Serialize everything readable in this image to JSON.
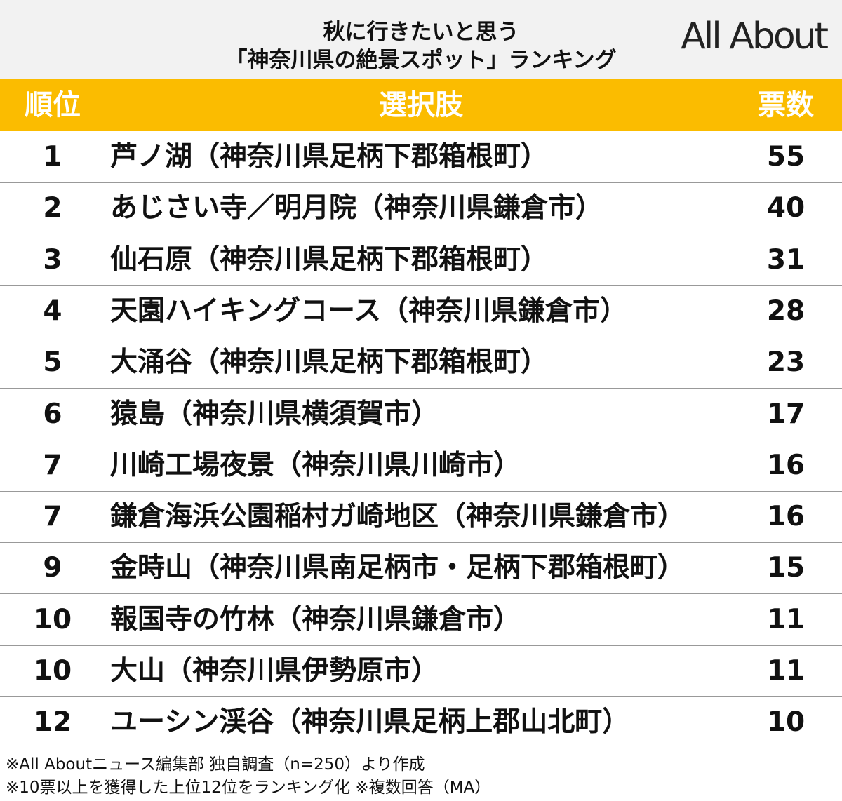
{
  "header": {
    "title_lines": [
      "秋に行きたいと思う",
      "「神奈川県の絶景スポット」ランキング"
    ],
    "logo": "All About"
  },
  "table": {
    "columns": [
      "順位",
      "選択肢",
      "票数"
    ],
    "rows": [
      [
        "1",
        "芦ノ湖（神奈川県足柄下郡箱根町）",
        "55"
      ],
      [
        "2",
        "あじさい寺／明月院（神奈川県鎌倉市）",
        "40"
      ],
      [
        "3",
        "仙石原（神奈川県足柄下郡箱根町）",
        "31"
      ],
      [
        "4",
        "天園ハイキングコース（神奈川県鎌倉市）",
        "28"
      ],
      [
        "5",
        "大涌谷（神奈川県足柄下郡箱根町）",
        "23"
      ],
      [
        "6",
        "猿島（神奈川県横須賀市）",
        "17"
      ],
      [
        "7",
        "川崎工場夜景（神奈川県川崎市）",
        "16"
      ],
      [
        "7",
        "鎌倉海浜公園稲村ガ崎地区（神奈川県鎌倉市）",
        "16"
      ],
      [
        "9",
        "金時山（神奈川県南足柄市・足柄下郡箱根町）",
        "15"
      ],
      [
        "10",
        "報国寺の竹林（神奈川県鎌倉市）",
        "11"
      ],
      [
        "10",
        "大山（神奈川県伊勢原市）",
        "11"
      ],
      [
        "12",
        "ユーシン渓谷（神奈川県足柄上郡山北町）",
        "10"
      ]
    ]
  },
  "footer": {
    "notes": [
      "※All Aboutニュース編集部 独自調査（n=250）より作成",
      "※10票以上を獲得した上位12位をランキング化 ※複数回答（MA）"
    ]
  }
}
